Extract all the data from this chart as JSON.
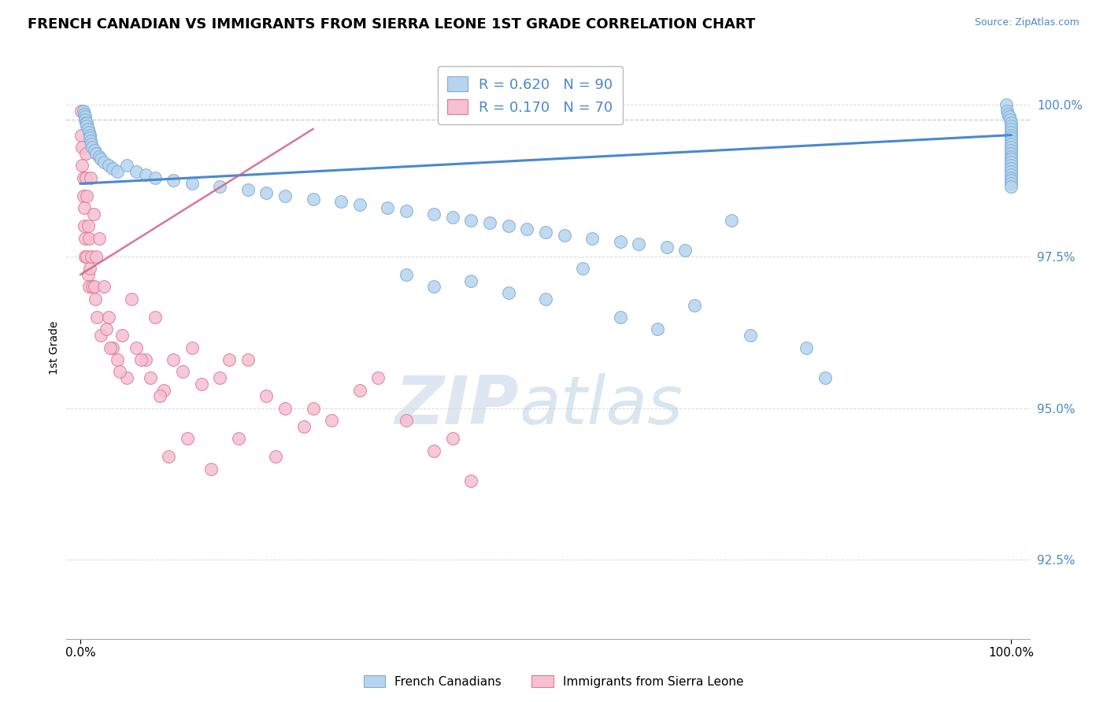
{
  "title": "FRENCH CANADIAN VS IMMIGRANTS FROM SIERRA LEONE 1ST GRADE CORRELATION CHART",
  "source": "Source: ZipAtlas.com",
  "ylabel": "1st Grade",
  "blue_R": 0.62,
  "blue_N": 90,
  "pink_R": 0.17,
  "pink_N": 70,
  "blue_label": "French Canadians",
  "pink_label": "Immigrants from Sierra Leone",
  "xlim": [
    -1.5,
    102.0
  ],
  "ylim": [
    91.2,
    100.8
  ],
  "ytick_vals": [
    92.5,
    95.0,
    97.5,
    100.0
  ],
  "xtick_vals": [
    0.0,
    100.0
  ],
  "xtick_labels": [
    "0.0%",
    "100.0%"
  ],
  "blue_face": "#b8d4ed",
  "blue_edge": "#7aaed6",
  "pink_face": "#f5c0d0",
  "pink_edge": "#e07898",
  "trend_blue": "#4a88d0",
  "trend_pink": "#d06080",
  "grid_color": "#cccccc",
  "watermark_color_zip": "#c8d8e8",
  "watermark_color_atlas": "#a0c0d8",
  "blue_x": [
    0.3,
    0.4,
    0.5,
    0.5,
    0.6,
    0.7,
    0.7,
    0.8,
    0.9,
    1.0,
    1.0,
    1.1,
    1.2,
    1.3,
    1.5,
    1.7,
    2.0,
    2.2,
    2.5,
    3.0,
    3.5,
    4.0,
    5.0,
    6.0,
    7.0,
    8.0,
    10.0,
    12.0,
    15.0,
    18.0,
    20.0,
    22.0,
    25.0,
    28.0,
    30.0,
    33.0,
    35.0,
    38.0,
    40.0,
    42.0,
    44.0,
    46.0,
    48.0,
    50.0,
    52.0,
    55.0,
    58.0,
    60.0,
    63.0,
    65.0,
    35.0,
    38.0,
    42.0,
    46.0,
    50.0,
    54.0,
    58.0,
    62.0,
    66.0,
    70.0,
    72.0,
    78.0,
    80.0,
    99.5,
    99.6,
    99.7,
    99.8,
    99.9,
    100.0,
    100.0,
    100.0,
    100.0,
    100.0,
    100.0,
    100.0,
    100.0,
    100.0,
    100.0,
    100.0,
    100.0,
    100.0,
    100.0,
    100.0,
    100.0,
    100.0,
    100.0,
    100.0,
    100.0,
    100.0,
    100.0
  ],
  "blue_y": [
    99.9,
    99.85,
    99.8,
    99.75,
    99.7,
    99.7,
    99.65,
    99.6,
    99.55,
    99.5,
    99.45,
    99.4,
    99.35,
    99.3,
    99.25,
    99.2,
    99.15,
    99.1,
    99.05,
    99.0,
    98.95,
    98.9,
    99.0,
    98.9,
    98.85,
    98.8,
    98.75,
    98.7,
    98.65,
    98.6,
    98.55,
    98.5,
    98.45,
    98.4,
    98.35,
    98.3,
    98.25,
    98.2,
    98.15,
    98.1,
    98.05,
    98.0,
    97.95,
    97.9,
    97.85,
    97.8,
    97.75,
    97.7,
    97.65,
    97.6,
    97.2,
    97.0,
    97.1,
    96.9,
    96.8,
    97.3,
    96.5,
    96.3,
    96.7,
    98.1,
    96.2,
    96.0,
    95.5,
    100.0,
    99.9,
    99.85,
    99.8,
    99.75,
    99.7,
    99.65,
    99.6,
    99.55,
    99.5,
    99.45,
    99.4,
    99.35,
    99.3,
    99.25,
    99.2,
    99.15,
    99.1,
    99.05,
    99.0,
    98.95,
    98.9,
    98.85,
    98.8,
    98.75,
    98.7,
    98.65
  ],
  "pink_x": [
    0.1,
    0.1,
    0.2,
    0.2,
    0.3,
    0.3,
    0.4,
    0.4,
    0.5,
    0.5,
    0.6,
    0.6,
    0.7,
    0.7,
    0.8,
    0.8,
    0.9,
    0.9,
    1.0,
    1.0,
    1.1,
    1.2,
    1.3,
    1.4,
    1.5,
    1.6,
    1.7,
    1.8,
    2.0,
    2.2,
    2.5,
    3.0,
    3.5,
    4.0,
    4.5,
    5.0,
    6.0,
    7.0,
    8.0,
    9.0,
    10.0,
    12.0,
    15.0,
    18.0,
    20.0,
    25.0,
    30.0,
    35.0,
    40.0,
    5.5,
    6.5,
    7.5,
    2.8,
    3.2,
    4.2,
    8.5,
    11.0,
    13.0,
    16.0,
    22.0,
    27.0,
    32.0,
    38.0,
    42.0,
    9.5,
    11.5,
    14.0,
    17.0,
    21.0,
    24.0
  ],
  "pink_y": [
    99.9,
    99.5,
    99.3,
    99.0,
    98.8,
    98.5,
    98.3,
    98.0,
    97.8,
    97.5,
    99.2,
    98.8,
    98.5,
    97.5,
    98.0,
    97.2,
    97.8,
    97.0,
    99.5,
    97.3,
    98.8,
    97.5,
    97.0,
    98.2,
    97.0,
    96.8,
    97.5,
    96.5,
    97.8,
    96.2,
    97.0,
    96.5,
    96.0,
    95.8,
    96.2,
    95.5,
    96.0,
    95.8,
    96.5,
    95.3,
    95.8,
    96.0,
    95.5,
    95.8,
    95.2,
    95.0,
    95.3,
    94.8,
    94.5,
    96.8,
    95.8,
    95.5,
    96.3,
    96.0,
    95.6,
    95.2,
    95.6,
    95.4,
    95.8,
    95.0,
    94.8,
    95.5,
    94.3,
    93.8,
    94.2,
    94.5,
    94.0,
    94.5,
    94.2,
    94.7
  ]
}
